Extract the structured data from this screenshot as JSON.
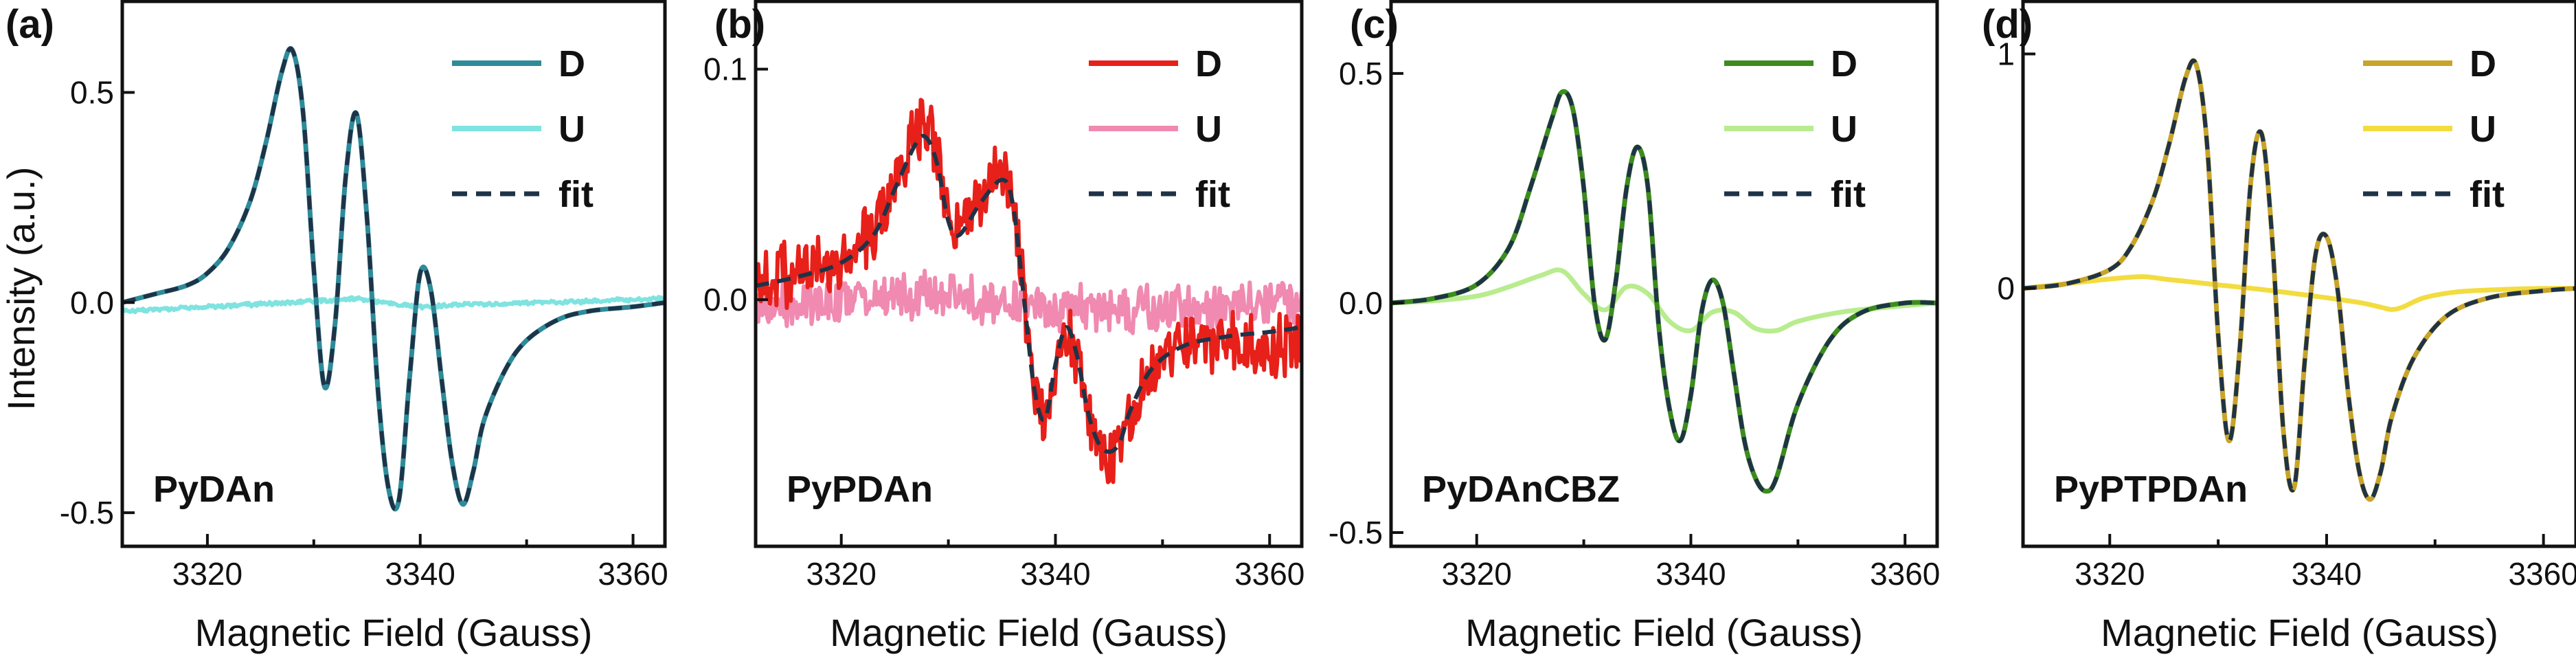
{
  "figure": {
    "ylabel": "Intensity (a.u.)",
    "xlabel": "Magnetic Field (Gauss)",
    "colors": {
      "fit": "#1f3347",
      "axis": "#111111"
    }
  },
  "chart_data": [
    {
      "type": "line",
      "panel_label": "(a)",
      "sample": "PyDAn",
      "xlabel": "Magnetic Field (Gauss)",
      "ylabel": "Intensity (a.u.)",
      "xlim": [
        3312,
        3363
      ],
      "ylim": [
        -0.58,
        0.72
      ],
      "xticks": [
        3320,
        3340,
        3360
      ],
      "xtick_labels": [
        "3320",
        "3340",
        "3360"
      ],
      "yticks": [
        0.5,
        0.0,
        -0.5
      ],
      "ytick_labels": [
        "0.5",
        "0.0",
        "-0.5"
      ],
      "legend_position": "top-right",
      "series": [
        {
          "name": "D",
          "color": "#2e8b9a",
          "style": "solid",
          "noise": 0,
          "x": [
            3312,
            3315,
            3318,
            3320,
            3322,
            3324,
            3325.5,
            3327,
            3328,
            3329,
            3330,
            3331,
            3332,
            3333,
            3334,
            3335,
            3336,
            3337,
            3338,
            3339,
            3340,
            3341,
            3342,
            3343,
            3344,
            3345,
            3346,
            3348,
            3350,
            3353,
            3356,
            3360,
            3363
          ],
          "y": [
            0.0,
            0.02,
            0.04,
            0.07,
            0.13,
            0.24,
            0.38,
            0.55,
            0.6,
            0.45,
            0.08,
            -0.2,
            -0.05,
            0.3,
            0.45,
            0.2,
            -0.2,
            -0.44,
            -0.47,
            -0.18,
            0.07,
            0.03,
            -0.18,
            -0.38,
            -0.48,
            -0.4,
            -0.28,
            -0.16,
            -0.09,
            -0.04,
            -0.02,
            -0.01,
            0.0
          ]
        },
        {
          "name": "U",
          "color": "#7fe3e0",
          "style": "solid",
          "noise": 0.004,
          "x": [
            3312,
            3320,
            3328,
            3334,
            3338,
            3340,
            3344,
            3352,
            3363
          ],
          "y": [
            -0.02,
            -0.01,
            0.0,
            0.01,
            -0.005,
            -0.01,
            -0.005,
            0.0,
            0.01
          ]
        },
        {
          "name": "fit",
          "color": "#1f3347",
          "style": "dashed",
          "noise": 0,
          "x": [
            3312,
            3315,
            3318,
            3320,
            3322,
            3324,
            3325.5,
            3327,
            3328,
            3329,
            3330,
            3331,
            3332,
            3333,
            3334,
            3335,
            3336,
            3337,
            3338,
            3339,
            3340,
            3341,
            3342,
            3343,
            3344,
            3345,
            3346,
            3348,
            3350,
            3353,
            3356,
            3360,
            3363
          ],
          "y": [
            0.0,
            0.02,
            0.04,
            0.07,
            0.13,
            0.24,
            0.38,
            0.55,
            0.6,
            0.45,
            0.08,
            -0.2,
            -0.05,
            0.3,
            0.45,
            0.2,
            -0.2,
            -0.44,
            -0.47,
            -0.18,
            0.07,
            0.03,
            -0.18,
            -0.38,
            -0.48,
            -0.4,
            -0.28,
            -0.16,
            -0.09,
            -0.04,
            -0.02,
            -0.01,
            0.0
          ]
        }
      ]
    },
    {
      "type": "line",
      "panel_label": "(b)",
      "sample": "PyPDAn",
      "xlabel": "Magnetic Field (Gauss)",
      "ylabel": "",
      "xlim": [
        3312,
        3363
      ],
      "ylim": [
        -0.107,
        0.13
      ],
      "xticks": [
        3320,
        3340,
        3360
      ],
      "xtick_labels": [
        "3320",
        "3340",
        "3360"
      ],
      "yticks": [
        0.1,
        0.0
      ],
      "ytick_labels": [
        "0.1",
        "0.0"
      ],
      "legend_position": "top-right",
      "series": [
        {
          "name": "D",
          "color": "#e8201a",
          "style": "solid",
          "noise": 0.012,
          "x": [
            3312,
            3316,
            3320,
            3323,
            3325,
            3327,
            3328,
            3329,
            3330,
            3331,
            3333,
            3335,
            3336,
            3337,
            3338,
            3339,
            3340,
            3341,
            3342,
            3343,
            3344,
            3345,
            3346,
            3347,
            3349,
            3352,
            3356,
            3360,
            3363
          ],
          "y": [
            0.008,
            0.012,
            0.018,
            0.03,
            0.05,
            0.072,
            0.075,
            0.06,
            0.035,
            0.03,
            0.045,
            0.055,
            0.045,
            0.005,
            -0.04,
            -0.055,
            -0.03,
            -0.01,
            -0.025,
            -0.05,
            -0.065,
            -0.068,
            -0.065,
            -0.05,
            -0.03,
            -0.02,
            -0.018,
            -0.02,
            -0.02
          ]
        },
        {
          "name": "U",
          "color": "#f08ab0",
          "style": "solid",
          "noise": 0.009,
          "x": [
            3312,
            3320,
            3330,
            3340,
            3350,
            3363
          ],
          "y": [
            -0.003,
            0.0,
            0.002,
            -0.005,
            -0.004,
            0.0
          ]
        },
        {
          "name": "fit",
          "color": "#1f3347",
          "style": "dashed",
          "noise": 0,
          "x": [
            3312,
            3316,
            3320,
            3323,
            3325,
            3327,
            3328,
            3329,
            3330,
            3331,
            3333,
            3335,
            3336,
            3337,
            3338,
            3339,
            3340,
            3341,
            3342,
            3343,
            3344,
            3345,
            3346,
            3347,
            3349,
            3352,
            3356,
            3360,
            3363
          ],
          "y": [
            0.006,
            0.01,
            0.016,
            0.028,
            0.048,
            0.068,
            0.07,
            0.058,
            0.034,
            0.028,
            0.042,
            0.052,
            0.042,
            0.003,
            -0.038,
            -0.052,
            -0.028,
            -0.012,
            -0.024,
            -0.048,
            -0.062,
            -0.066,
            -0.062,
            -0.048,
            -0.03,
            -0.02,
            -0.016,
            -0.014,
            -0.012
          ]
        }
      ]
    },
    {
      "type": "line",
      "panel_label": "(c)",
      "sample": "PyDAnCBZ",
      "xlabel": "Magnetic Field (Gauss)",
      "ylabel": "",
      "xlim": [
        3312,
        3363
      ],
      "ylim": [
        -0.53,
        0.66
      ],
      "xticks": [
        3320,
        3340,
        3360
      ],
      "xtick_labels": [
        "3320",
        "3340",
        "3360"
      ],
      "yticks": [
        0.5,
        0.0,
        -0.5
      ],
      "ytick_labels": [
        "0.5",
        "0.0",
        "-0.5"
      ],
      "legend_position": "top-right",
      "series": [
        {
          "name": "D",
          "color": "#3c8c1e",
          "style": "solid",
          "noise": 0,
          "x": [
            3312,
            3316,
            3320,
            3323,
            3325,
            3327,
            3328,
            3329,
            3330,
            3331,
            3332,
            3333,
            3334,
            3335,
            3336,
            3337,
            3338,
            3339,
            3340,
            3341,
            3342,
            3343,
            3344,
            3345,
            3346,
            3347,
            3348,
            3350,
            3353,
            3356,
            3360,
            3363
          ],
          "y": [
            0.0,
            0.01,
            0.04,
            0.12,
            0.25,
            0.4,
            0.46,
            0.42,
            0.25,
            0.0,
            -0.08,
            0.05,
            0.25,
            0.34,
            0.25,
            -0.05,
            -0.23,
            -0.3,
            -0.2,
            -0.02,
            0.05,
            0.0,
            -0.15,
            -0.3,
            -0.38,
            -0.41,
            -0.38,
            -0.22,
            -0.08,
            -0.02,
            0.0,
            0.0
          ]
        },
        {
          "name": "U",
          "color": "#b8ec8e",
          "style": "solid",
          "noise": 0,
          "x": [
            3312,
            3316,
            3320,
            3323,
            3326,
            3328,
            3330,
            3332,
            3334,
            3336,
            3338,
            3340,
            3342,
            3344,
            3346,
            3348,
            3350,
            3354,
            3358,
            3363
          ],
          "y": [
            0.0,
            0.005,
            0.015,
            0.035,
            0.06,
            0.07,
            0.02,
            -0.015,
            0.035,
            0.02,
            -0.04,
            -0.06,
            -0.02,
            -0.02,
            -0.055,
            -0.06,
            -0.04,
            -0.02,
            -0.01,
            0.0
          ]
        },
        {
          "name": "fit",
          "color": "#1f3347",
          "style": "dashed",
          "noise": 0,
          "x": [
            3312,
            3316,
            3320,
            3323,
            3325,
            3327,
            3328,
            3329,
            3330,
            3331,
            3332,
            3333,
            3334,
            3335,
            3336,
            3337,
            3338,
            3339,
            3340,
            3341,
            3342,
            3343,
            3344,
            3345,
            3346,
            3347,
            3348,
            3350,
            3353,
            3356,
            3360,
            3363
          ],
          "y": [
            0.0,
            0.01,
            0.04,
            0.12,
            0.25,
            0.4,
            0.46,
            0.42,
            0.25,
            0.0,
            -0.08,
            0.05,
            0.25,
            0.34,
            0.25,
            -0.05,
            -0.23,
            -0.3,
            -0.2,
            -0.02,
            0.05,
            0.0,
            -0.15,
            -0.3,
            -0.38,
            -0.41,
            -0.38,
            -0.22,
            -0.08,
            -0.02,
            0.0,
            0.0
          ]
        }
      ]
    },
    {
      "type": "line",
      "panel_label": "(d)",
      "sample": "PyPTPDAn",
      "xlabel": "Magnetic Field (Gauss)",
      "ylabel": "",
      "xlim": [
        3312,
        3363
      ],
      "ylim": [
        -1.1,
        1.23
      ],
      "xticks": [
        3320,
        3340,
        3360
      ],
      "xtick_labels": [
        "3320",
        "3340",
        "3360"
      ],
      "yticks": [
        1,
        0
      ],
      "ytick_labels": [
        "1",
        "0"
      ],
      "legend_position": "top-right",
      "series": [
        {
          "name": "D",
          "color": "#c8a52a",
          "style": "solid",
          "noise": 0,
          "x": [
            3312,
            3316,
            3320,
            3322,
            3324,
            3325.5,
            3327,
            3328,
            3329,
            3330,
            3331,
            3332,
            3333,
            3334,
            3335,
            3336,
            3337,
            3338,
            3339,
            3340,
            3341,
            3342,
            3343,
            3344,
            3345,
            3346,
            3348,
            3351,
            3355,
            3360,
            3363
          ],
          "y": [
            0.0,
            0.02,
            0.08,
            0.18,
            0.38,
            0.62,
            0.9,
            0.95,
            0.6,
            -0.2,
            -0.65,
            -0.25,
            0.45,
            0.66,
            0.2,
            -0.6,
            -0.85,
            -0.3,
            0.15,
            0.22,
            0.0,
            -0.45,
            -0.78,
            -0.9,
            -0.78,
            -0.55,
            -0.3,
            -0.12,
            -0.04,
            -0.01,
            0.0
          ]
        },
        {
          "name": "U",
          "color": "#f2dc40",
          "style": "solid",
          "noise": 0,
          "x": [
            3312,
            3316,
            3320,
            3323,
            3325,
            3327,
            3330,
            3335,
            3340,
            3343,
            3345,
            3346,
            3347,
            3349,
            3352,
            3356,
            3360,
            3363
          ],
          "y": [
            0.0,
            0.02,
            0.04,
            0.05,
            0.04,
            0.03,
            0.015,
            -0.01,
            -0.04,
            -0.06,
            -0.08,
            -0.09,
            -0.08,
            -0.04,
            -0.015,
            -0.005,
            0.0,
            0.0
          ]
        },
        {
          "name": "fit",
          "color": "#1f3347",
          "style": "dashed",
          "noise": 0,
          "x": [
            3312,
            3316,
            3320,
            3322,
            3324,
            3325.5,
            3327,
            3328,
            3329,
            3330,
            3331,
            3332,
            3333,
            3334,
            3335,
            3336,
            3337,
            3338,
            3339,
            3340,
            3341,
            3342,
            3343,
            3344,
            3345,
            3346,
            3348,
            3351,
            3355,
            3360,
            3363
          ],
          "y": [
            0.0,
            0.02,
            0.08,
            0.18,
            0.38,
            0.62,
            0.9,
            0.95,
            0.6,
            -0.2,
            -0.65,
            -0.25,
            0.45,
            0.66,
            0.2,
            -0.6,
            -0.85,
            -0.3,
            0.15,
            0.22,
            0.0,
            -0.45,
            -0.78,
            -0.9,
            -0.78,
            -0.55,
            -0.3,
            -0.12,
            -0.04,
            -0.01,
            0.0
          ]
        }
      ]
    }
  ]
}
